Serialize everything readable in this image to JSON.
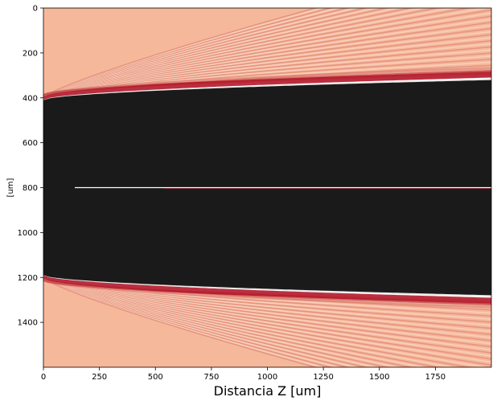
{
  "chart_data": {
    "type": "heatmap",
    "title": "",
    "xlabel": "Distancia Z [um]",
    "ylabel": "[um]",
    "xlim": [
      0,
      2000
    ],
    "ylim": [
      1600,
      0
    ],
    "y_axis_inverted": true,
    "xticks": [
      0,
      250,
      500,
      750,
      1000,
      1250,
      1500,
      1750
    ],
    "xtick_labels": [
      "0",
      "250",
      "500",
      "750",
      "1000",
      "1250",
      "1500",
      "1750"
    ],
    "yticks": [
      0,
      200,
      400,
      600,
      800,
      1000,
      1200,
      1400
    ],
    "ytick_labels": [
      "0",
      "200",
      "400",
      "600",
      "800",
      "1000",
      "1200",
      "1400"
    ],
    "colormap": "RdGy",
    "grid": false,
    "legend": "none",
    "regions": [
      {
        "name": "upper fringe field",
        "y_range": [
          0,
          400
        ],
        "appearance": "light salmon with diverging diagonal stripes"
      },
      {
        "name": "upper boundary bright band",
        "y_start": 400,
        "y_at_x_end": 310,
        "appearance": "dark red / white edge, curving upward with distance"
      },
      {
        "name": "dark core",
        "y_range": [
          400,
          1200
        ],
        "appearance": "near-black"
      },
      {
        "name": "central line",
        "y": 800,
        "x_range": [
          140,
          2000
        ],
        "appearance": "thin white-red line"
      },
      {
        "name": "lower boundary bright band",
        "y_start": 1200,
        "y_at_x_end": 1290,
        "appearance": "dark red / white edge, curving downward with distance"
      },
      {
        "name": "lower fringe field",
        "y_range": [
          1200,
          1600
        ],
        "appearance": "light salmon with diverging diagonal stripes"
      }
    ],
    "colors": {
      "background_fringe": "#f6b89b",
      "fringe_dark_stripe": "#d9796a",
      "fringe_light_stripe": "#fbe3d6",
      "edge_red": "#b2182b",
      "dark_core": "#1a1a1a",
      "white": "#ffffff"
    }
  }
}
